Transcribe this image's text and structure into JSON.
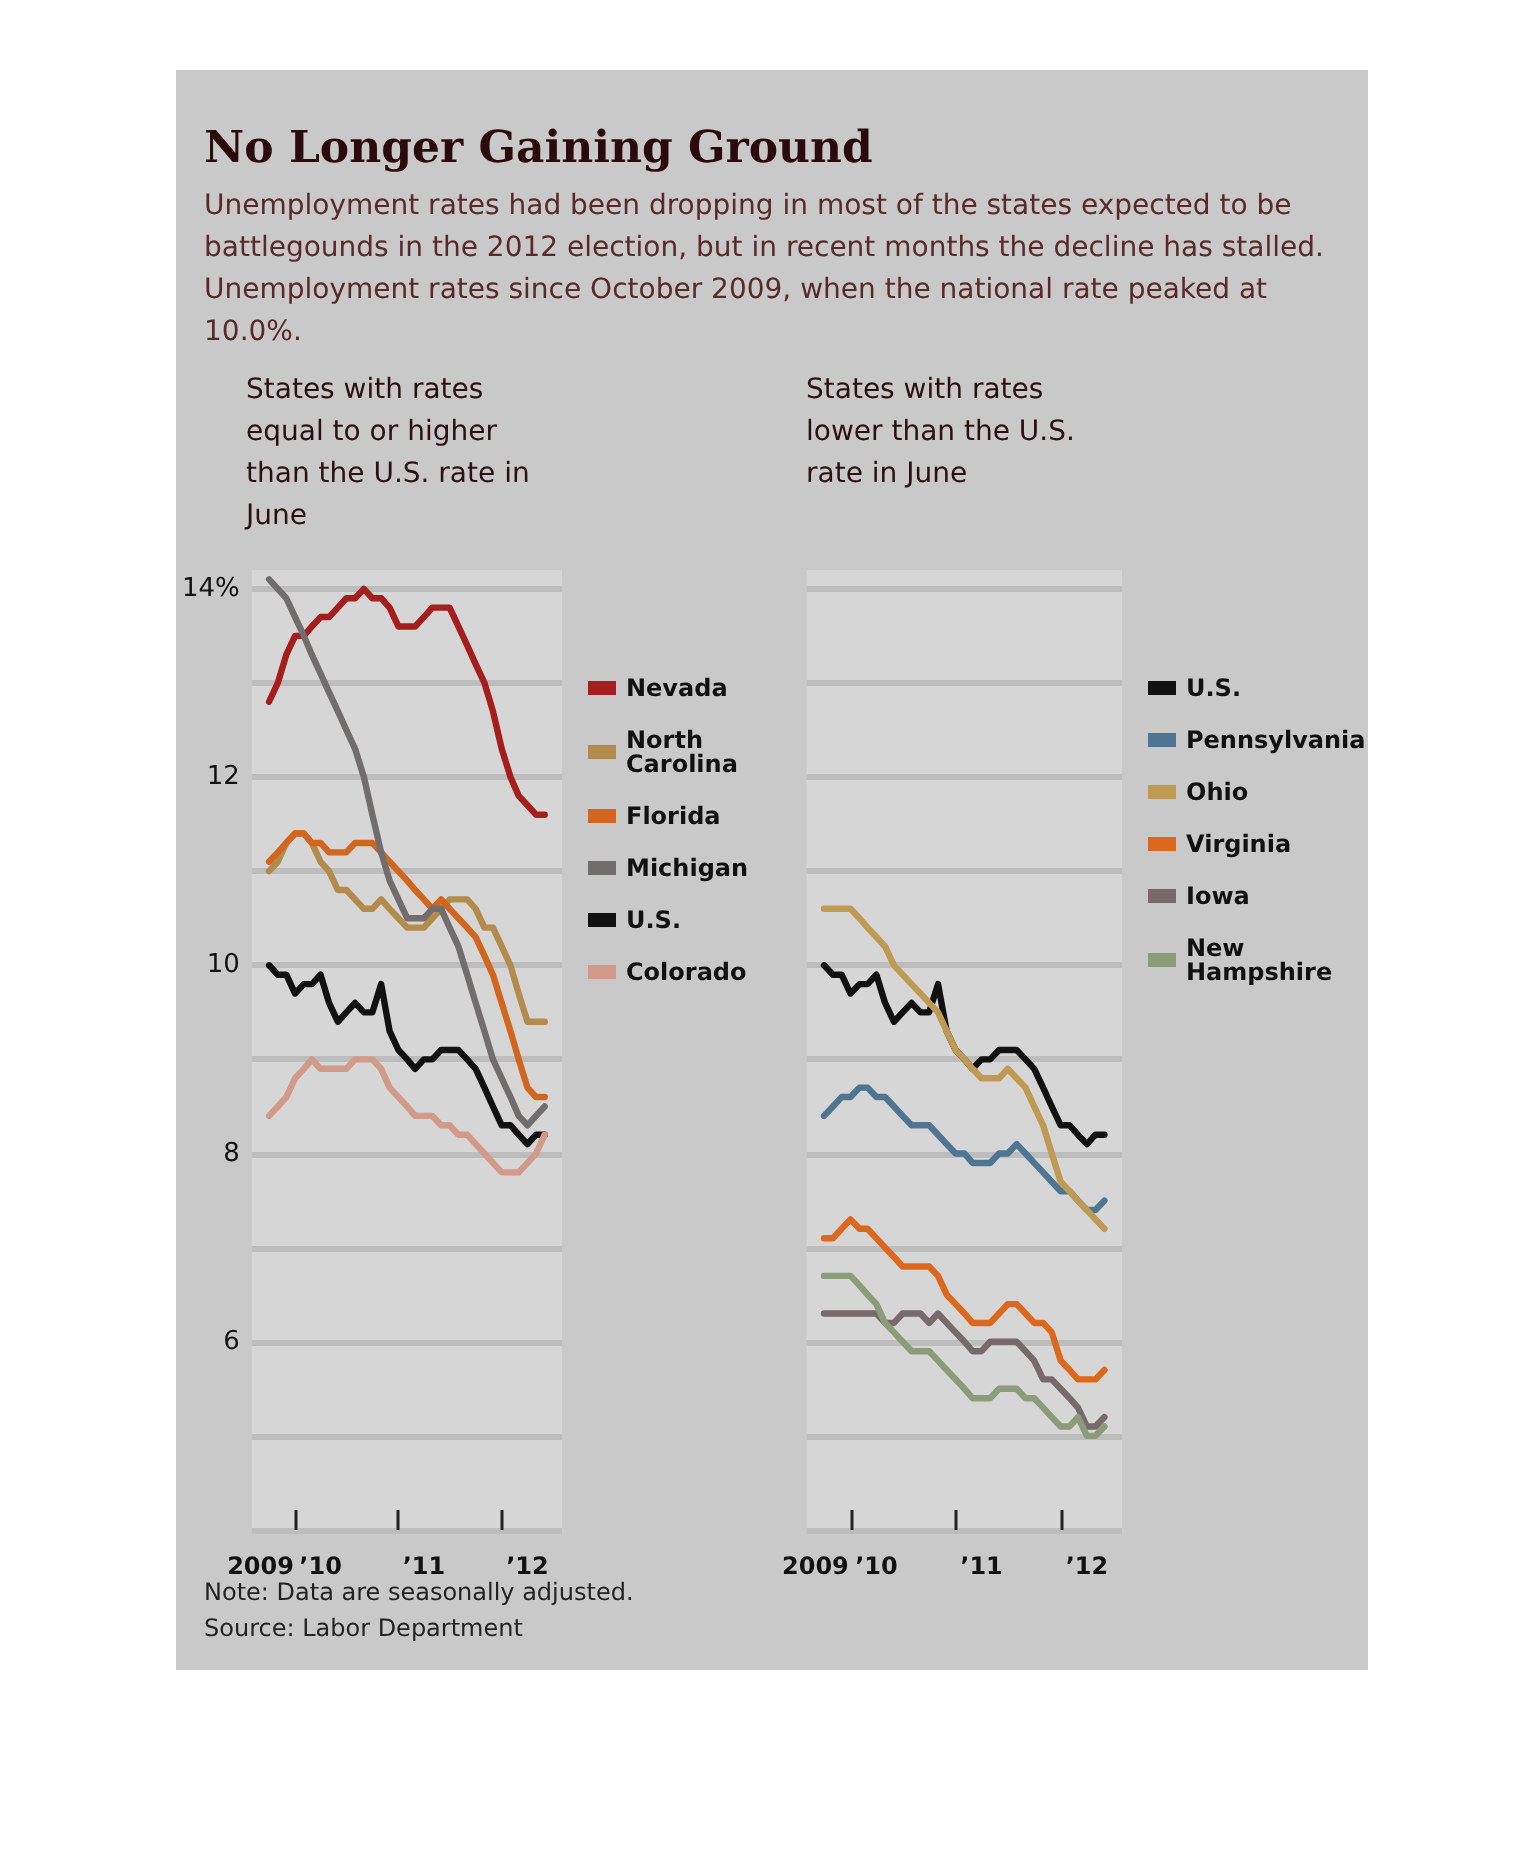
{
  "chart_data": [
    {
      "type": "line",
      "title": "No Longer Gaining Ground",
      "subtitle": "Unemployment rates had been dropping in most of the states expected to be battlegounds in the 2012 election, but in recent months the decline has stalled. Unemployment rates since October 2009, when the national rate peaked at 10.0%.",
      "annotations": [
        "States with rates equal to or higher than the U.S. rate in June",
        "Note: Data are seasonally adjusted.",
        "Source: Labor Department"
      ],
      "x": [
        "2009-10",
        "2009-11",
        "2009-12",
        "2010-01",
        "2010-02",
        "2010-03",
        "2010-04",
        "2010-05",
        "2010-06",
        "2010-07",
        "2010-08",
        "2010-09",
        "2010-10",
        "2010-11",
        "2010-12",
        "2011-01",
        "2011-02",
        "2011-03",
        "2011-04",
        "2011-05",
        "2011-06",
        "2011-07",
        "2011-08",
        "2011-09",
        "2011-10",
        "2011-11",
        "2011-12",
        "2012-01",
        "2012-02",
        "2012-03",
        "2012-04",
        "2012-05",
        "2012-06"
      ],
      "series": [
        {
          "name": "Nevada",
          "color": "#a51d1d",
          "values": [
            12.8,
            13.0,
            13.3,
            13.5,
            13.5,
            13.6,
            13.7,
            13.7,
            13.8,
            13.9,
            13.9,
            14.0,
            13.9,
            13.9,
            13.8,
            13.6,
            13.6,
            13.6,
            13.7,
            13.8,
            13.8,
            13.8,
            13.6,
            13.4,
            13.2,
            13.0,
            12.7,
            12.3,
            12.0,
            11.8,
            11.7,
            11.6,
            11.6
          ]
        },
        {
          "name": "North Carolina",
          "color": "#b38b4d",
          "values": [
            11.0,
            11.1,
            11.3,
            11.4,
            11.4,
            11.3,
            11.1,
            11.0,
            10.8,
            10.8,
            10.7,
            10.6,
            10.6,
            10.7,
            10.6,
            10.5,
            10.4,
            10.4,
            10.4,
            10.5,
            10.6,
            10.7,
            10.7,
            10.7,
            10.6,
            10.4,
            10.4,
            10.2,
            10.0,
            9.7,
            9.4,
            9.4,
            9.4
          ]
        },
        {
          "name": "Florida",
          "color": "#d2661e",
          "values": [
            11.1,
            11.2,
            11.3,
            11.4,
            11.4,
            11.3,
            11.3,
            11.2,
            11.2,
            11.2,
            11.3,
            11.3,
            11.3,
            11.2,
            11.1,
            11.0,
            10.9,
            10.8,
            10.7,
            10.6,
            10.7,
            10.6,
            10.5,
            10.4,
            10.3,
            10.1,
            9.9,
            9.6,
            9.3,
            9.0,
            8.7,
            8.6,
            8.6
          ]
        },
        {
          "name": "Michigan",
          "color": "#726d6d",
          "values": [
            14.1,
            14.0,
            13.9,
            13.7,
            13.5,
            13.3,
            13.1,
            12.9,
            12.7,
            12.5,
            12.3,
            12.0,
            11.6,
            11.2,
            10.9,
            10.7,
            10.5,
            10.5,
            10.5,
            10.6,
            10.6,
            10.4,
            10.2,
            9.9,
            9.6,
            9.3,
            9.0,
            8.8,
            8.6,
            8.4,
            8.3,
            8.4,
            8.5
          ]
        },
        {
          "name": "U.S.",
          "color": "#111111",
          "values": [
            10.0,
            9.9,
            9.9,
            9.7,
            9.8,
            9.8,
            9.9,
            9.6,
            9.4,
            9.5,
            9.6,
            9.5,
            9.5,
            9.8,
            9.3,
            9.1,
            9.0,
            8.9,
            9.0,
            9.0,
            9.1,
            9.1,
            9.1,
            9.0,
            8.9,
            8.7,
            8.5,
            8.3,
            8.3,
            8.2,
            8.1,
            8.2,
            8.2
          ]
        },
        {
          "name": "Colorado",
          "color": "#d29a88",
          "values": [
            8.4,
            8.5,
            8.6,
            8.8,
            8.9,
            9.0,
            8.9,
            8.9,
            8.9,
            8.9,
            9.0,
            9.0,
            9.0,
            8.9,
            8.7,
            8.6,
            8.5,
            8.4,
            8.4,
            8.4,
            8.3,
            8.3,
            8.2,
            8.2,
            8.1,
            8.0,
            7.9,
            7.8,
            7.8,
            7.8,
            7.9,
            8.0,
            8.2
          ]
        }
      ],
      "xlim": [
        "2009-08",
        "2012-08"
      ],
      "xticks": [
        {
          "value": "2009-09",
          "label": "2009"
        },
        {
          "value": "2010-01",
          "label": null
        },
        {
          "value": "2010-04",
          "label": "’10"
        },
        {
          "value": "2011-01",
          "label": null
        },
        {
          "value": "2011-04",
          "label": "’11"
        },
        {
          "value": "2012-01",
          "label": null
        },
        {
          "value": "2012-04",
          "label": "’12"
        }
      ],
      "ylim": [
        4,
        14.2
      ],
      "yticks": [
        {
          "value": 4,
          "label": null
        },
        {
          "value": 5,
          "label": null
        },
        6,
        {
          "value": 7,
          "label": null
        },
        8,
        {
          "value": 9,
          "label": null
        },
        10,
        {
          "value": 11,
          "label": null
        },
        12,
        {
          "value": 13,
          "label": null
        },
        {
          "value": 14,
          "label": "14%"
        }
      ],
      "grid": "y",
      "legend": "right",
      "line_style": "solid",
      "marker": "none"
    },
    {
      "type": "line",
      "annotations": [
        "States with rates lower than the U.S. rate in June"
      ],
      "x": [
        "2009-10",
        "2009-11",
        "2009-12",
        "2010-01",
        "2010-02",
        "2010-03",
        "2010-04",
        "2010-05",
        "2010-06",
        "2010-07",
        "2010-08",
        "2010-09",
        "2010-10",
        "2010-11",
        "2010-12",
        "2011-01",
        "2011-02",
        "2011-03",
        "2011-04",
        "2011-05",
        "2011-06",
        "2011-07",
        "2011-08",
        "2011-09",
        "2011-10",
        "2011-11",
        "2011-12",
        "2012-01",
        "2012-02",
        "2012-03",
        "2012-04",
        "2012-05",
        "2012-06"
      ],
      "series": [
        {
          "name": "U.S.",
          "color": "#111111",
          "values": [
            10.0,
            9.9,
            9.9,
            9.7,
            9.8,
            9.8,
            9.9,
            9.6,
            9.4,
            9.5,
            9.6,
            9.5,
            9.5,
            9.8,
            9.3,
            9.1,
            9.0,
            8.9,
            9.0,
            9.0,
            9.1,
            9.1,
            9.1,
            9.0,
            8.9,
            8.7,
            8.5,
            8.3,
            8.3,
            8.2,
            8.1,
            8.2,
            8.2
          ]
        },
        {
          "name": "Pennsylvania",
          "color": "#4e7591",
          "values": [
            8.4,
            8.5,
            8.6,
            8.6,
            8.7,
            8.7,
            8.6,
            8.6,
            8.5,
            8.4,
            8.3,
            8.3,
            8.3,
            8.2,
            8.1,
            8.0,
            8.0,
            7.9,
            7.9,
            7.9,
            8.0,
            8.0,
            8.1,
            8.0,
            7.9,
            7.8,
            7.7,
            7.6,
            7.6,
            7.5,
            7.4,
            7.4,
            7.5
          ]
        },
        {
          "name": "Ohio",
          "color": "#bf9a52",
          "values": [
            10.6,
            10.6,
            10.6,
            10.6,
            10.5,
            10.4,
            10.3,
            10.2,
            10.0,
            9.9,
            9.8,
            9.7,
            9.6,
            9.5,
            9.3,
            9.1,
            9.0,
            8.9,
            8.8,
            8.8,
            8.8,
            8.9,
            8.8,
            8.7,
            8.5,
            8.3,
            8.0,
            7.7,
            7.6,
            7.5,
            7.4,
            7.3,
            7.2
          ]
        },
        {
          "name": "Virginia",
          "color": "#dd671c",
          "values": [
            7.1,
            7.1,
            7.2,
            7.3,
            7.2,
            7.2,
            7.1,
            7.0,
            6.9,
            6.8,
            6.8,
            6.8,
            6.8,
            6.7,
            6.5,
            6.4,
            6.3,
            6.2,
            6.2,
            6.2,
            6.3,
            6.4,
            6.4,
            6.3,
            6.2,
            6.2,
            6.1,
            5.8,
            5.7,
            5.6,
            5.6,
            5.6,
            5.7
          ]
        },
        {
          "name": "Iowa",
          "color": "#776a6a",
          "values": [
            6.3,
            6.3,
            6.3,
            6.3,
            6.3,
            6.3,
            6.3,
            6.2,
            6.2,
            6.3,
            6.3,
            6.3,
            6.2,
            6.3,
            6.2,
            6.1,
            6.0,
            5.9,
            5.9,
            6.0,
            6.0,
            6.0,
            6.0,
            5.9,
            5.8,
            5.6,
            5.6,
            5.5,
            5.4,
            5.3,
            5.1,
            5.1,
            5.2
          ]
        },
        {
          "name": "New Hampshire",
          "color": "#8c9b7a",
          "values": [
            6.7,
            6.7,
            6.7,
            6.7,
            6.6,
            6.5,
            6.4,
            6.2,
            6.1,
            6.0,
            5.9,
            5.9,
            5.9,
            5.8,
            5.7,
            5.6,
            5.5,
            5.4,
            5.4,
            5.4,
            5.5,
            5.5,
            5.5,
            5.4,
            5.4,
            5.3,
            5.2,
            5.1,
            5.1,
            5.2,
            5.0,
            5.0,
            5.1
          ]
        }
      ],
      "xlim": [
        "2009-08",
        "2012-08"
      ],
      "xticks": [
        {
          "value": "2009-09",
          "label": "2009"
        },
        {
          "value": "2010-01",
          "label": null
        },
        {
          "value": "2010-04",
          "label": "’10"
        },
        {
          "value": "2011-01",
          "label": null
        },
        {
          "value": "2011-04",
          "label": "’11"
        },
        {
          "value": "2012-01",
          "label": null
        },
        {
          "value": "2012-04",
          "label": "’12"
        }
      ],
      "ylim": [
        4,
        14.2
      ],
      "yticks": [
        {
          "value": 4,
          "label": null
        },
        {
          "value": 5,
          "label": null
        },
        {
          "value": 6,
          "label": null
        },
        {
          "value": 7,
          "label": null
        },
        {
          "value": 8,
          "label": null
        },
        {
          "value": 9,
          "label": null
        },
        {
          "value": 10,
          "label": null
        },
        {
          "value": 11,
          "label": null
        },
        {
          "value": 12,
          "label": null
        },
        {
          "value": 13,
          "label": null
        },
        {
          "value": 14,
          "label": null
        }
      ],
      "tick_labels": "x",
      "grid": "y",
      "legend": "right",
      "line_style": "solid",
      "marker": "none"
    }
  ]
}
